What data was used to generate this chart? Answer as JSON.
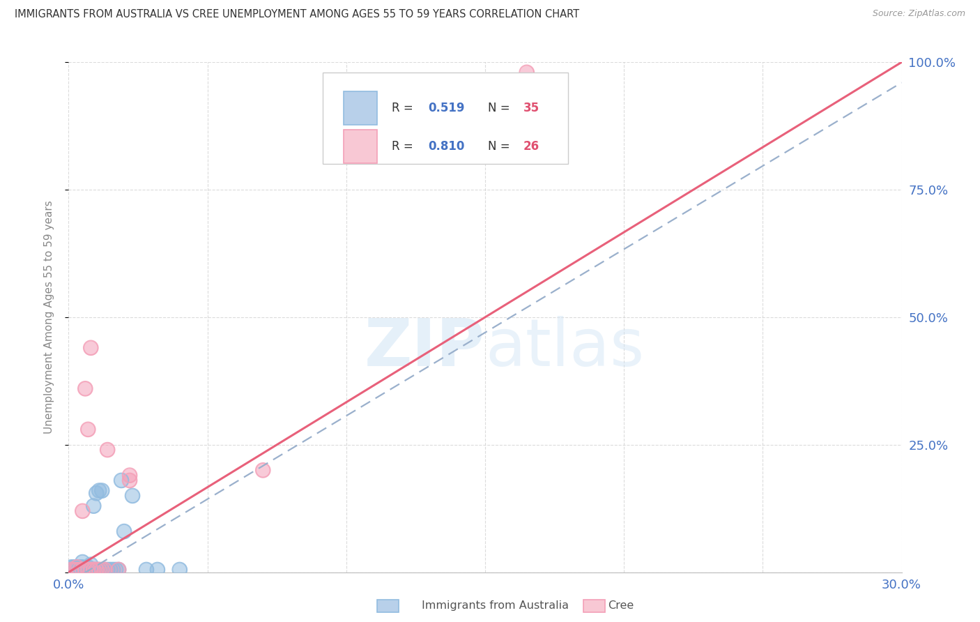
{
  "title": "IMMIGRANTS FROM AUSTRALIA VS CREE UNEMPLOYMENT AMONG AGES 55 TO 59 YEARS CORRELATION CHART",
  "source": "Source: ZipAtlas.com",
  "ylabel": "Unemployment Among Ages 55 to 59 years",
  "watermark": "ZIPatlas",
  "legend_blue_R": "0.519",
  "legend_blue_N": "35",
  "legend_pink_R": "0.810",
  "legend_pink_N": "26",
  "xlim": [
    0.0,
    0.3
  ],
  "ylim": [
    0.0,
    1.0
  ],
  "xtick_positions": [
    0.0,
    0.05,
    0.1,
    0.15,
    0.2,
    0.25,
    0.3
  ],
  "xticklabels": [
    "0.0%",
    "",
    "",
    "",
    "",
    "",
    "30.0%"
  ],
  "yticks_right": [
    0.25,
    0.5,
    0.75,
    1.0
  ],
  "ytick_right_labels": [
    "25.0%",
    "50.0%",
    "75.0%",
    "100.0%"
  ],
  "blue_scatter_color": "#92bce0",
  "pink_scatter_color": "#f4a0b8",
  "pink_line_color": "#e8607a",
  "dashed_line_color": "#9ab0cc",
  "grid_color": "#cccccc",
  "axis_label_color": "#4472c4",
  "title_color": "#333333",
  "blue_scatter": [
    [
      0.001,
      0.005
    ],
    [
      0.001,
      0.01
    ],
    [
      0.002,
      0.005
    ],
    [
      0.002,
      0.01
    ],
    [
      0.003,
      0.005
    ],
    [
      0.003,
      0.01
    ],
    [
      0.004,
      0.005
    ],
    [
      0.004,
      0.01
    ],
    [
      0.005,
      0.005
    ],
    [
      0.005,
      0.01
    ],
    [
      0.005,
      0.02
    ],
    [
      0.006,
      0.005
    ],
    [
      0.007,
      0.005
    ],
    [
      0.007,
      0.01
    ],
    [
      0.008,
      0.005
    ],
    [
      0.008,
      0.015
    ],
    [
      0.009,
      0.005
    ],
    [
      0.009,
      0.13
    ],
    [
      0.01,
      0.005
    ],
    [
      0.01,
      0.155
    ],
    [
      0.011,
      0.005
    ],
    [
      0.011,
      0.16
    ],
    [
      0.012,
      0.16
    ],
    [
      0.013,
      0.005
    ],
    [
      0.014,
      0.005
    ],
    [
      0.015,
      0.005
    ],
    [
      0.016,
      0.005
    ],
    [
      0.017,
      0.005
    ],
    [
      0.018,
      0.005
    ],
    [
      0.019,
      0.18
    ],
    [
      0.02,
      0.08
    ],
    [
      0.023,
      0.15
    ],
    [
      0.028,
      0.005
    ],
    [
      0.032,
      0.005
    ],
    [
      0.04,
      0.005
    ]
  ],
  "pink_scatter": [
    [
      0.001,
      0.005
    ],
    [
      0.002,
      0.005
    ],
    [
      0.003,
      0.005
    ],
    [
      0.003,
      0.01
    ],
    [
      0.004,
      0.005
    ],
    [
      0.005,
      0.005
    ],
    [
      0.005,
      0.12
    ],
    [
      0.006,
      0.005
    ],
    [
      0.006,
      0.36
    ],
    [
      0.007,
      0.005
    ],
    [
      0.007,
      0.28
    ],
    [
      0.008,
      0.005
    ],
    [
      0.008,
      0.44
    ],
    [
      0.009,
      0.005
    ],
    [
      0.009,
      0.005
    ],
    [
      0.01,
      0.005
    ],
    [
      0.01,
      0.005
    ],
    [
      0.011,
      0.005
    ],
    [
      0.012,
      0.005
    ],
    [
      0.013,
      0.005
    ],
    [
      0.014,
      0.24
    ],
    [
      0.018,
      0.005
    ],
    [
      0.022,
      0.19
    ],
    [
      0.022,
      0.18
    ],
    [
      0.07,
      0.2
    ],
    [
      0.165,
      0.98
    ]
  ],
  "pink_line_x": [
    0.0,
    0.3
  ],
  "pink_line_y": [
    0.0,
    1.0
  ],
  "blue_line_x": [
    0.0,
    0.3
  ],
  "blue_line_y": [
    -0.02,
    0.96
  ]
}
